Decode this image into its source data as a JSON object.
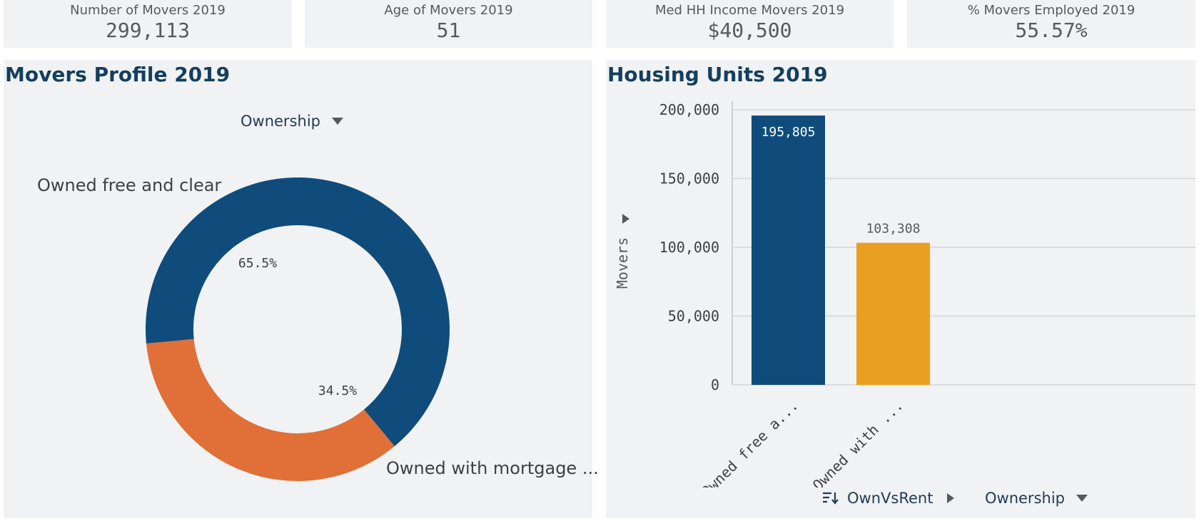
{
  "kpis": [
    {
      "label": "Number of Movers 2019",
      "value": "299,113"
    },
    {
      "label": "Age of Movers 2019",
      "value": "51"
    },
    {
      "label": "Med HH Income Movers 2019",
      "value": "$40,500"
    },
    {
      "label": "% Movers Employed 2019",
      "value": "55.57%"
    }
  ],
  "donut_panel": {
    "title": "Movers Profile 2019",
    "dimension_selector": "Ownership",
    "labels": {
      "owned_free": "Owned free and clear",
      "owned_mortgage": "Owned with mortgage ..."
    }
  },
  "bar_panel": {
    "title": "Housing Units 2019",
    "footer_dimension": "OwnVsRent",
    "footer_measure": "Ownership"
  },
  "colors": {
    "navy": "#0f4c7c",
    "orange": "#e07038",
    "gold": "#e9a020",
    "panel_bg": "#f1f2f4",
    "title": "#143f5e"
  },
  "chart_data": [
    {
      "type": "pie",
      "title": "",
      "categories": [
        "Owned free and clear",
        "Owned with mortgage ..."
      ],
      "values": [
        65.5,
        34.5
      ],
      "value_labels": [
        "65.5%",
        "34.5%"
      ],
      "colors": [
        "#0f4c7c",
        "#e07038"
      ]
    },
    {
      "type": "bar",
      "title": "",
      "categories": [
        "Owned free a...",
        "Owned with ..."
      ],
      "values": [
        195805,
        103308
      ],
      "value_labels": [
        "195,805",
        "103,308"
      ],
      "colors": [
        "#0f4c7c",
        "#e9a020"
      ],
      "ylabel": "Movers",
      "ylim": [
        0,
        200000
      ],
      "yticks": [
        0,
        50000,
        100000,
        150000,
        200000
      ],
      "ytick_labels": [
        "0",
        "50,000",
        "100,000",
        "150,000",
        "200,000"
      ],
      "grid": true
    }
  ]
}
